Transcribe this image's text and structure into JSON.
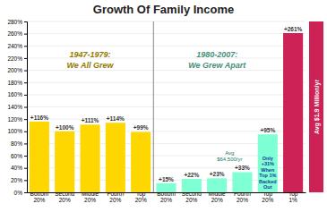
{
  "chart_data": {
    "type": "bar",
    "title": "Growth Of Family Income",
    "categories": [
      "Bottom\n20%",
      "Second\n20%",
      "Middle\n20%",
      "Fourth\n20%",
      "Top\n20%",
      "Bottom\n20%",
      "Second\n20%",
      "Middle\n20%",
      "Fourth\n20%",
      "Top\n20%",
      "Top\n1%"
    ],
    "values": [
      116,
      100,
      111,
      114,
      99,
      15,
      22,
      23,
      33,
      95,
      261
    ],
    "value_labels": [
      "+116%",
      "+100%",
      "+111%",
      "+114%",
      "+99%",
      "+15%",
      "+22%",
      "+23%",
      "+33%",
      "+95%",
      "+261%"
    ],
    "colors": [
      "#ffd700",
      "#ffd700",
      "#ffd700",
      "#ffd700",
      "#ffd700",
      "#7fffd4",
      "#7fffd4",
      "#7fffd4",
      "#7fffd4",
      "#7fffd4",
      "#cc2255"
    ],
    "data_labels": true,
    "ylim": [
      0,
      280
    ],
    "yticks": [
      {
        "value": 0,
        "label": "0%"
      },
      {
        "value": 20,
        "label": "20%"
      },
      {
        "value": 40,
        "label": "40%"
      },
      {
        "value": 60,
        "label": "60%"
      },
      {
        "value": 80,
        "label": "80%"
      },
      {
        "value": 100,
        "label": "100%"
      },
      {
        "value": 120,
        "label": "120%"
      },
      {
        "value": 140,
        "label": "140%"
      },
      {
        "value": 160,
        "label": "160%"
      },
      {
        "value": 180,
        "label": "180%"
      },
      {
        "value": 200,
        "label": "200%"
      },
      {
        "value": 220,
        "label": "220%"
      },
      {
        "value": 240,
        "label": "240%"
      },
      {
        "value": 260,
        "label": "260%"
      },
      {
        "value": 280,
        "label": "280%"
      }
    ],
    "grid": true,
    "annotations": [
      "1947-1979:",
      "We All Grew",
      "1980-2007:",
      "We Grew Apart",
      "Avg\n$64,500/yr",
      "Only\n+31%\nWhen\nTop 1%\nBacked\nOut",
      "Avg $1.9 Million/yr"
    ]
  }
}
